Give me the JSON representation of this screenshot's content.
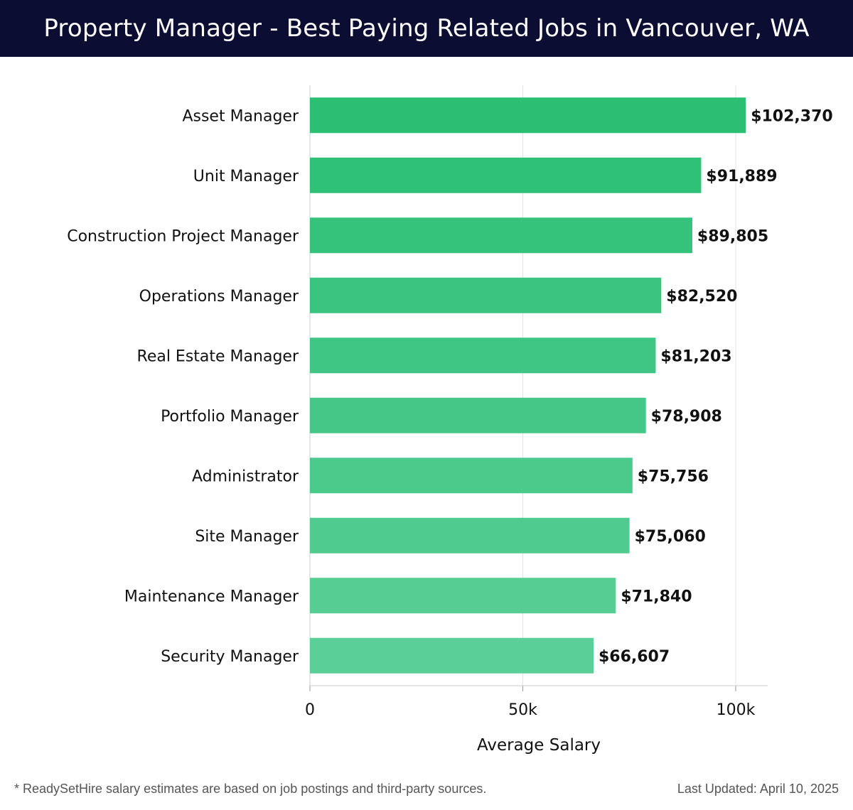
{
  "header": {
    "title": "Property Manager - Best Paying Related Jobs in Vancouver, WA"
  },
  "footer": {
    "note": "* ReadySetHire salary estimates are based on job postings and third-party sources.",
    "updated": "Last Updated: April 10, 2025"
  },
  "chart_data": {
    "type": "bar",
    "orientation": "horizontal",
    "categories": [
      "Asset Manager",
      "Unit Manager",
      "Construction Project Manager",
      "Operations Manager",
      "Real Estate Manager",
      "Portfolio Manager",
      "Administrator",
      "Site Manager",
      "Maintenance Manager",
      "Security Manager"
    ],
    "values": [
      102370,
      91889,
      89805,
      82520,
      81203,
      78908,
      75756,
      75060,
      71840,
      66607
    ],
    "value_labels": [
      "$102,370",
      "$91,889",
      "$89,805",
      "$82,520",
      "$81,203",
      "$78,908",
      "$75,756",
      "$75,060",
      "$71,840",
      "$66,607"
    ],
    "xlabel": "Average Salary",
    "xlim": [
      0,
      108000
    ],
    "xticks": [
      0,
      50000,
      100000
    ],
    "xtick_labels": [
      "0",
      "50k",
      "100k"
    ],
    "grid": "vertical",
    "colors": {
      "bar_top": "#2bbf74",
      "bar_bottom": "#5acf97",
      "grid": "#e3e3e3",
      "axis": "#cccccc"
    }
  }
}
